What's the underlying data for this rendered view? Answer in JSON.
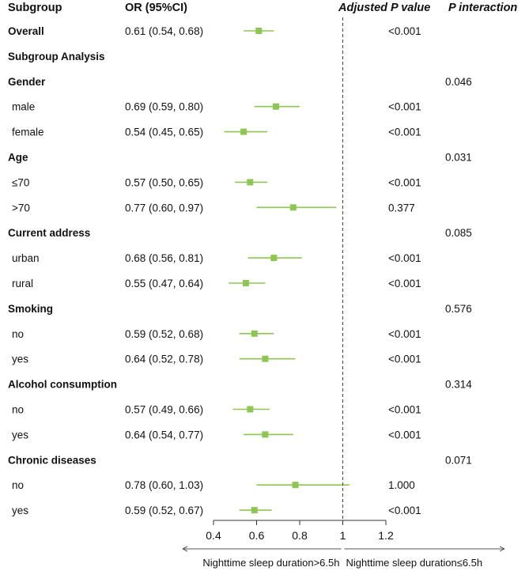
{
  "chart_data": {
    "type": "forest",
    "headers": {
      "subgroup": "Subgroup",
      "or": "OR (95%CI)",
      "p_adj": "Adjusted P value",
      "p_int": "P interaction"
    },
    "rows": [
      {
        "label": "Overall",
        "kind": "bold",
        "or_text": "0.61 (0.54, 0.68)",
        "or": 0.61,
        "lo": 0.54,
        "hi": 0.68,
        "p_adj": "<0.001",
        "p_int": ""
      },
      {
        "label": "Subgroup Analysis",
        "kind": "header",
        "or_text": "",
        "p_adj": "",
        "p_int": ""
      },
      {
        "label": "Gender",
        "kind": "header",
        "or_text": "",
        "p_adj": "",
        "p_int": "0.046"
      },
      {
        "label": "male",
        "kind": "item",
        "or_text": "0.69 (0.59, 0.80)",
        "or": 0.69,
        "lo": 0.59,
        "hi": 0.8,
        "p_adj": "<0.001",
        "p_int": ""
      },
      {
        "label": "female",
        "kind": "item",
        "or_text": "0.54 (0.45, 0.65)",
        "or": 0.54,
        "lo": 0.45,
        "hi": 0.65,
        "p_adj": "<0.001",
        "p_int": ""
      },
      {
        "label": "Age",
        "kind": "header",
        "or_text": "",
        "p_adj": "",
        "p_int": "0.031"
      },
      {
        "label": "≤70",
        "kind": "item",
        "or_text": "0.57 (0.50, 0.65)",
        "or": 0.57,
        "lo": 0.5,
        "hi": 0.65,
        "p_adj": "<0.001",
        "p_int": ""
      },
      {
        "label": ">70",
        "kind": "item",
        "or_text": "0.77 (0.60, 0.97)",
        "or": 0.77,
        "lo": 0.6,
        "hi": 0.97,
        "p_adj": "0.377",
        "p_int": ""
      },
      {
        "label": "Current address",
        "kind": "header",
        "or_text": "",
        "p_adj": "",
        "p_int": "0.085"
      },
      {
        "label": "urban",
        "kind": "item",
        "or_text": "0.68 (0.56, 0.81)",
        "or": 0.68,
        "lo": 0.56,
        "hi": 0.81,
        "p_adj": "<0.001",
        "p_int": ""
      },
      {
        "label": "rural",
        "kind": "item",
        "or_text": "0.55 (0.47, 0.64)",
        "or": 0.55,
        "lo": 0.47,
        "hi": 0.64,
        "p_adj": "<0.001",
        "p_int": ""
      },
      {
        "label": "Smoking",
        "kind": "header",
        "or_text": "",
        "p_adj": "",
        "p_int": "0.576"
      },
      {
        "label": "no",
        "kind": "item",
        "or_text": "0.59 (0.52, 0.68)",
        "or": 0.59,
        "lo": 0.52,
        "hi": 0.68,
        "p_adj": "<0.001",
        "p_int": ""
      },
      {
        "label": "yes",
        "kind": "item",
        "or_text": "0.64 (0.52, 0.78)",
        "or": 0.64,
        "lo": 0.52,
        "hi": 0.78,
        "p_adj": "<0.001",
        "p_int": ""
      },
      {
        "label": "Alcohol consumption",
        "kind": "header",
        "or_text": "",
        "p_adj": "",
        "p_int": "0.314"
      },
      {
        "label": "no",
        "kind": "item",
        "or_text": "0.57 (0.49, 0.66)",
        "or": 0.57,
        "lo": 0.49,
        "hi": 0.66,
        "p_adj": "<0.001",
        "p_int": ""
      },
      {
        "label": "yes",
        "kind": "item",
        "or_text": "0.64 (0.54, 0.77)",
        "or": 0.64,
        "lo": 0.54,
        "hi": 0.77,
        "p_adj": "<0.001",
        "p_int": ""
      },
      {
        "label": "Chronic diseases",
        "kind": "header",
        "or_text": "",
        "p_adj": "",
        "p_int": "0.071"
      },
      {
        "label": "no",
        "kind": "item",
        "or_text": "0.78 (0.60, 1.03)",
        "or": 0.78,
        "lo": 0.6,
        "hi": 1.03,
        "p_adj": "1.000",
        "p_int": ""
      },
      {
        "label": "yes",
        "kind": "item",
        "or_text": "0.59 (0.52, 0.67)",
        "or": 0.59,
        "lo": 0.52,
        "hi": 0.67,
        "p_adj": "<0.001",
        "p_int": ""
      }
    ],
    "x_ticks": [
      "0.4",
      "0.6",
      "0.8",
      "1",
      "1.2"
    ],
    "x_range": [
      0.4,
      1.2
    ],
    "reference_line": 1,
    "left_label": "Nighttime sleep duration>6.5h",
    "right_label": "Nighttime sleep duration≤6.5h",
    "colors": {
      "marker": "#8dc653",
      "text": "#111111",
      "axis": "#333333"
    }
  }
}
